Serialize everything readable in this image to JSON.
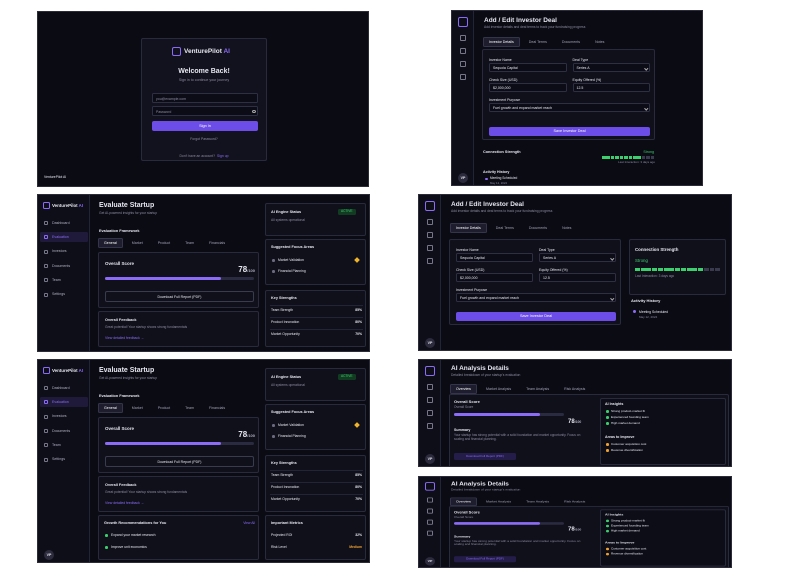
{
  "login": {
    "brand": "VenturePilot",
    "brand_suffix": "AI",
    "title": "Welcome Back!",
    "subtitle": "Sign in to continue your journey",
    "email_placeholder": "you@example.com",
    "password_placeholder": "Password",
    "button": "Sign In",
    "forgot": "Forgot Password?",
    "signup_prompt": "Don't have an account?",
    "signup_link": "Sign up",
    "footer": "VenturePilot AI"
  },
  "deal": {
    "title": "Add / Edit Investor Deal",
    "subtitle": "Add investor details and deal terms to track your fundraising progress",
    "tabs": [
      "Investor Details",
      "Deal Terms",
      "Documents",
      "Notes"
    ],
    "fields": [
      {
        "label": "Investor Name",
        "value": "Sequoia Capital"
      },
      {
        "label": "Deal Type",
        "value": "Series A"
      },
      {
        "label": "Check Size (USD)",
        "value": "$2,000,000"
      },
      {
        "label": "Equity Offered (%)",
        "value": "12.5"
      },
      {
        "label": "Investment Purpose",
        "value": "Fuel growth and expand market reach"
      }
    ],
    "button": "Save Investor Deal",
    "connection": {
      "title": "Connection Strength",
      "status": "Strong",
      "last": "Last Interaction: 3 days ago"
    },
    "activity": {
      "title": "Activity History",
      "items": [
        {
          "label": "Meeting Scheduled",
          "date": "May 12, 2024"
        }
      ]
    },
    "avatar": "VP"
  },
  "evaluate": {
    "brand": "VenturePilot",
    "brand_suffix": "AI",
    "nav": [
      "Dashboard",
      "Evaluation",
      "Investors",
      "Documents",
      "Team",
      "Settings"
    ],
    "title": "Evaluate Startup",
    "subtitle": "Get AI-powered insights for your startup",
    "framework_title": "Evaluation Framework",
    "tabs": [
      "General",
      "Market",
      "Product",
      "Team",
      "Financials"
    ],
    "score_title": "Overall Score",
    "score": 78,
    "score_max": "/100",
    "download": "Download Full Report (PDF)",
    "feedback_title": "Overall Feedback",
    "feedback_text": "Great potential! Your startup shows strong fundamentals",
    "feedback_link": "View detailed feedback →",
    "engine_title": "AI Engine Status",
    "engine_badge": "ACTIVE",
    "engine_text": "All systems operational",
    "focus_title": "Suggested Focus Areas",
    "focus": [
      "Market Validation",
      "Financial Planning"
    ],
    "strengths_title": "Key Strengths",
    "strengths": [
      {
        "label": "Team Strength",
        "value": "85%"
      },
      {
        "label": "Product Innovation",
        "value": "80%"
      },
      {
        "label": "Market Opportunity",
        "value": "70%"
      }
    ],
    "growth_title": "Growth Recommendations for You",
    "growth_link": "View All",
    "growth": [
      "Expand your market research",
      "Improve unit economics"
    ],
    "metrics_title": "Important Metrics",
    "metrics": [
      {
        "label": "Projected ROI",
        "value": "32%"
      },
      {
        "label": "Risk Level",
        "value": "Medium"
      }
    ],
    "avatar": "VP"
  },
  "analysis": {
    "title": "AI Analysis Details",
    "subtitle": "Detailed breakdown of your startup's evaluation",
    "tabs": [
      "Overview",
      "Market Analysis",
      "Team Analysis",
      "Risk Analysis"
    ],
    "score_title": "Overall Score",
    "score_subtitle": "Overall Score",
    "score": 78,
    "score_max": "/100",
    "summary_title": "Summary",
    "summary_text": "Your startup has strong potential with a solid foundation and market opportunity. Focus on scaling and financial planning.",
    "download": "Download Full Report (PDF)",
    "insights_title": "AI Insights",
    "insights": [
      "Strong product-market fit",
      "Experienced founding team",
      "High market demand"
    ],
    "improve_title": "Areas to Improve",
    "improve": [
      "Customer acquisition cost",
      "Revenue diversification"
    ],
    "avatar": "VP"
  }
}
